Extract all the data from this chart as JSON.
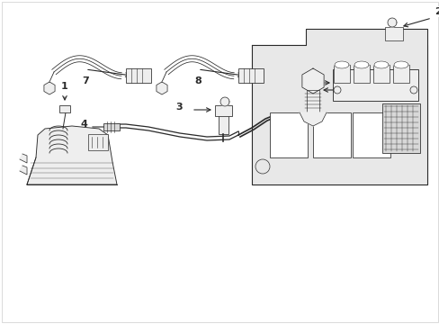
{
  "background_color": "#ffffff",
  "line_color": "#2a2a2a",
  "fig_width": 4.89,
  "fig_height": 3.6,
  "dpi": 100,
  "lw": 0.7,
  "gray_fill": "#d8d8d8",
  "light_gray": "#eeeeee"
}
